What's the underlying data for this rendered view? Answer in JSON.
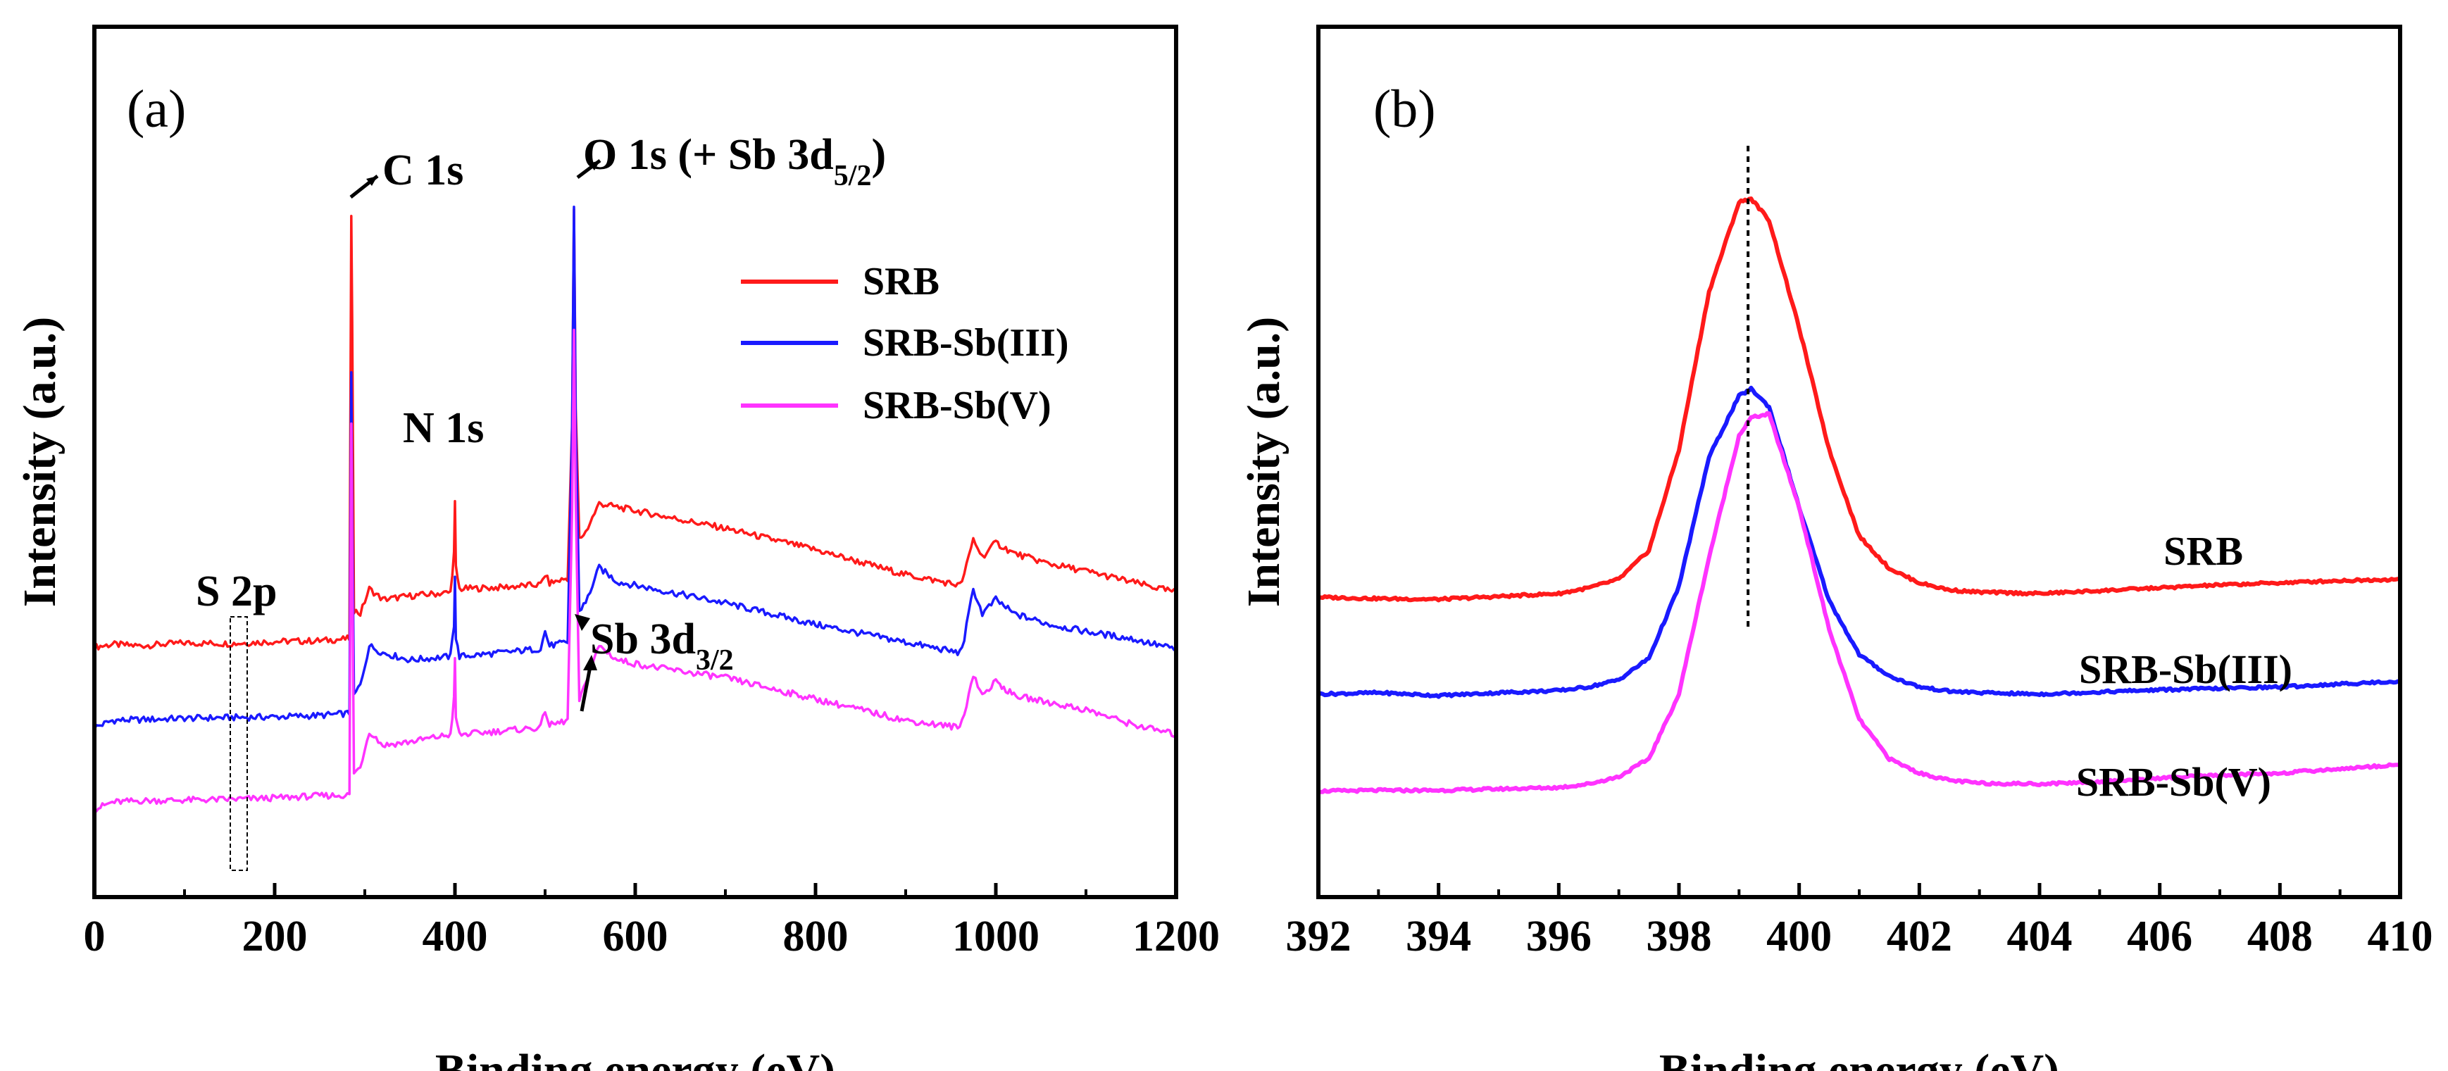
{
  "colors": {
    "SRB": "#ff1a1a",
    "SRB-Sb(III)": "#1a1aff",
    "SRB-Sb(V)": "#ff33ff"
  },
  "chart_data": [
    {
      "id": "a",
      "type": "line",
      "panel_label": "(a)",
      "xlabel": "Binding energy (eV)",
      "ylabel": "Intensity (a.u.)",
      "xlim": [
        0,
        1200
      ],
      "ylim": [
        0,
        100
      ],
      "xticks": [
        0,
        200,
        400,
        600,
        800,
        1000,
        1200
      ],
      "xtick_labels": [
        "0",
        "200",
        "400",
        "600",
        "800",
        "1000",
        "1200"
      ],
      "legend": {
        "position": "top-right",
        "entries": [
          "SRB",
          "SRB-Sb(III)",
          "SRB-Sb(V)"
        ]
      },
      "annotations": {
        "c1s": "C 1s",
        "o1s": "O 1s (+ Sb 3d5/2)",
        "n1s": "N 1s",
        "s2p": "S 2p",
        "sb3d": "Sb 3d3/2"
      },
      "series": [
        {
          "name": "SRB",
          "x": [
            0,
            20,
            50,
            100,
            150,
            200,
            250,
            283,
            284,
            285,
            286,
            288,
            295,
            305,
            320,
            350,
            395,
            399,
            400,
            401,
            405,
            450,
            495,
            500,
            505,
            525,
            530,
            532,
            534,
            538,
            545,
            560,
            580,
            620,
            700,
            800,
            900,
            960,
            965,
            975,
            985,
            1000,
            1020,
            1060,
            1100,
            1150,
            1200
          ],
          "y": [
            28.8,
            29.2,
            29.0,
            29.4,
            29.3,
            29.6,
            29.7,
            30.0,
            60.0,
            89.0,
            75.0,
            34.0,
            33.5,
            37.0,
            35.5,
            36.0,
            36.5,
            42.0,
            49.0,
            40.0,
            37.0,
            37.2,
            37.6,
            39.0,
            37.8,
            38.5,
            60.0,
            90.5,
            62.0,
            44.0,
            45.0,
            49.0,
            48.5,
            47.5,
            45.5,
            42.5,
            39.0,
            37.5,
            39.0,
            44.0,
            41.5,
            43.5,
            42.0,
            40.5,
            39.5,
            38.0,
            36.5
          ]
        },
        {
          "name": "SRB-Sb(III)",
          "x": [
            0,
            20,
            50,
            100,
            150,
            200,
            250,
            283,
            284,
            285,
            286,
            288,
            295,
            305,
            320,
            350,
            395,
            399,
            400,
            401,
            405,
            450,
            495,
            500,
            505,
            525,
            530,
            532,
            534,
            538,
            545,
            560,
            580,
            620,
            700,
            800,
            900,
            960,
            965,
            975,
            985,
            1000,
            1020,
            1060,
            1100,
            1150,
            1200
          ],
          "y": [
            17.5,
            18.5,
            18.6,
            18.8,
            18.9,
            19.0,
            19.2,
            19.5,
            45.0,
            67.0,
            48.0,
            22.0,
            23.5,
            29.0,
            28.0,
            27.0,
            27.5,
            32.0,
            39.0,
            30.0,
            27.5,
            28.0,
            28.6,
            31.0,
            29.0,
            29.5,
            60.0,
            90.5,
            60.0,
            34.0,
            35.0,
            40.0,
            38.0,
            37.0,
            35.0,
            32.0,
            29.5,
            28.0,
            30.0,
            37.0,
            33.5,
            35.5,
            33.5,
            32.0,
            31.0,
            30.0,
            28.5
          ]
        },
        {
          "name": "SRB-Sb(V)",
          "x": [
            0,
            20,
            50,
            100,
            150,
            200,
            250,
            283,
            284,
            285,
            286,
            288,
            295,
            305,
            320,
            350,
            395,
            399,
            400,
            401,
            405,
            450,
            495,
            500,
            505,
            525,
            530,
            532,
            534,
            538,
            545,
            560,
            580,
            620,
            700,
            800,
            900,
            960,
            965,
            975,
            985,
            1000,
            1020,
            1060,
            1100,
            1150,
            1200
          ],
          "y": [
            6.0,
            7.0,
            7.2,
            7.3,
            7.4,
            7.6,
            7.9,
            8.0,
            35.0,
            60.0,
            42.0,
            11.0,
            12.0,
            17.0,
            15.0,
            15.5,
            16.5,
            21.5,
            27.0,
            19.0,
            16.5,
            17.0,
            17.5,
            20.0,
            17.8,
            18.5,
            48.0,
            73.0,
            49.0,
            21.0,
            24.0,
            29.0,
            27.0,
            26.0,
            24.5,
            21.5,
            18.5,
            17.5,
            19.5,
            25.0,
            22.0,
            24.0,
            22.0,
            21.0,
            20.0,
            18.0,
            16.5
          ]
        }
      ]
    },
    {
      "id": "b",
      "type": "line",
      "panel_label": "(b)",
      "xlabel": "Binding energy (eV)",
      "ylabel": "Intensity (a.u.)",
      "xlim": [
        392,
        410
      ],
      "ylim": [
        0,
        100
      ],
      "xticks": [
        392,
        394,
        396,
        398,
        400,
        402,
        404,
        406,
        408,
        410
      ],
      "xtick_labels": [
        "392",
        "394",
        "396",
        "398",
        "400",
        "402",
        "404",
        "406",
        "408",
        "410"
      ],
      "reference_line_x": 399.15,
      "series_labels": [
        "SRB",
        "SRB-Sb(III)",
        "SRB-Sb(V)"
      ],
      "series": [
        {
          "name": "SRB",
          "x": [
            392,
            393,
            394,
            395,
            396,
            396.5,
            397,
            397.5,
            398,
            398.5,
            399,
            399.2,
            399.5,
            400,
            400.5,
            401,
            401.5,
            402,
            402.5,
            403,
            404,
            405,
            406,
            407,
            408,
            409,
            410
          ],
          "y": [
            34.5,
            34.3,
            34.2,
            34.6,
            35.0,
            35.8,
            37.0,
            41.0,
            55.0,
            77.0,
            89.5,
            90.0,
            87.0,
            72.0,
            55.0,
            43.0,
            38.5,
            36.5,
            35.5,
            35.2,
            35.0,
            35.4,
            35.8,
            36.2,
            36.5,
            36.8,
            37.0
          ]
        },
        {
          "name": "SRB-Sb(III)",
          "x": [
            392,
            393,
            394,
            395,
            396,
            396.5,
            397,
            397.5,
            398,
            398.5,
            399,
            399.2,
            399.5,
            400,
            400.5,
            401,
            401.5,
            402,
            402.5,
            403,
            404,
            405,
            406,
            407,
            408,
            409,
            410
          ],
          "y": [
            21.0,
            21.2,
            20.8,
            21.2,
            21.5,
            22.0,
            23.0,
            26.0,
            36.0,
            54.0,
            62.5,
            63.5,
            61.0,
            47.0,
            34.0,
            26.5,
            23.5,
            22.0,
            21.4,
            21.2,
            21.0,
            21.3,
            21.6,
            21.8,
            22.0,
            22.4,
            22.8
          ]
        },
        {
          "name": "SRB-Sb(V)",
          "x": [
            392,
            393,
            394,
            395,
            396,
            396.5,
            397,
            397.5,
            398,
            398.5,
            399,
            399.2,
            399.5,
            400,
            400.5,
            401,
            401.5,
            402,
            402.5,
            403,
            404,
            405,
            406,
            407,
            408,
            409,
            410
          ],
          "y": [
            7.5,
            7.6,
            7.6,
            7.8,
            8.0,
            8.5,
            9.5,
            12.0,
            21.0,
            40.0,
            57.0,
            59.5,
            60.0,
            47.0,
            30.0,
            17.5,
            12.0,
            10.0,
            9.0,
            8.6,
            8.5,
            8.8,
            9.3,
            9.7,
            10.0,
            10.6,
            11.2
          ]
        }
      ]
    }
  ]
}
